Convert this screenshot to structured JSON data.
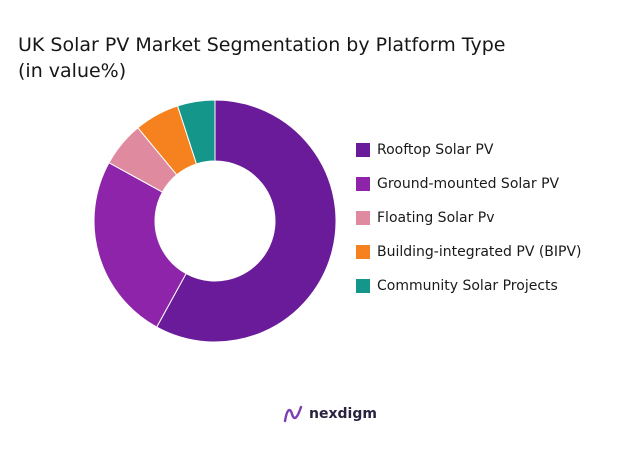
{
  "title_line1": "UK Solar PV Market Segmentation by Platform Type",
  "title_line2": "(in value%)",
  "chart_data": {
    "type": "pie",
    "donut": true,
    "legend_position": "right",
    "categories": [
      "Rooftop Solar PV",
      "Ground-mounted Solar PV",
      "Floating Solar Pv",
      "Building-integrated PV (BIPV)",
      "Community Solar Projects"
    ],
    "values": [
      58,
      25,
      6,
      6,
      5
    ],
    "colors": [
      "#6a1b9a",
      "#8e24aa",
      "#e08aa0",
      "#f5821f",
      "#15968a"
    ]
  },
  "brand": {
    "name": "nexdigm",
    "icon": "nexdigm-logo-icon"
  }
}
